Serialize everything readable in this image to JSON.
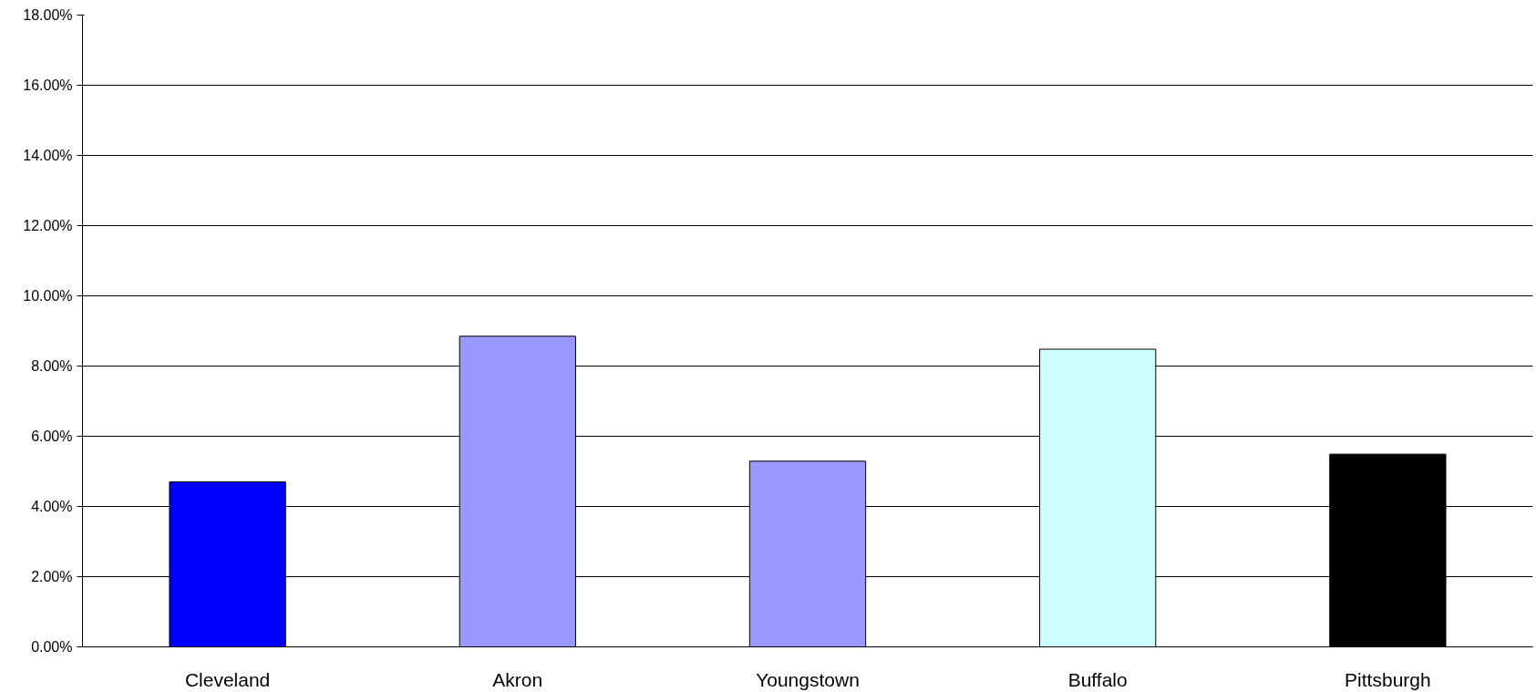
{
  "chart_data": {
    "type": "bar",
    "categories": [
      "Cleveland",
      "Akron",
      "Youngstown",
      "Buffalo",
      "Pittsburgh"
    ],
    "values": [
      4.7,
      8.85,
      5.29,
      8.48,
      5.49
    ],
    "colors": [
      "#0000ff",
      "#9999ff",
      "#9999ff",
      "#ccffff",
      "#000000"
    ],
    "ylim": [
      0,
      18
    ],
    "yticks": [
      {
        "value": 0,
        "label": "0.00%"
      },
      {
        "value": 2,
        "label": "2.00%"
      },
      {
        "value": 4,
        "label": "4.00%"
      },
      {
        "value": 6,
        "label": "6.00%"
      },
      {
        "value": 8,
        "label": "8.00%"
      },
      {
        "value": 10,
        "label": "10.00%"
      },
      {
        "value": 12,
        "label": "12.00%"
      },
      {
        "value": 14,
        "label": "14.00%"
      },
      {
        "value": 16,
        "label": "16.00%"
      },
      {
        "value": 18,
        "label": "18.00%"
      }
    ],
    "grid": "y"
  }
}
